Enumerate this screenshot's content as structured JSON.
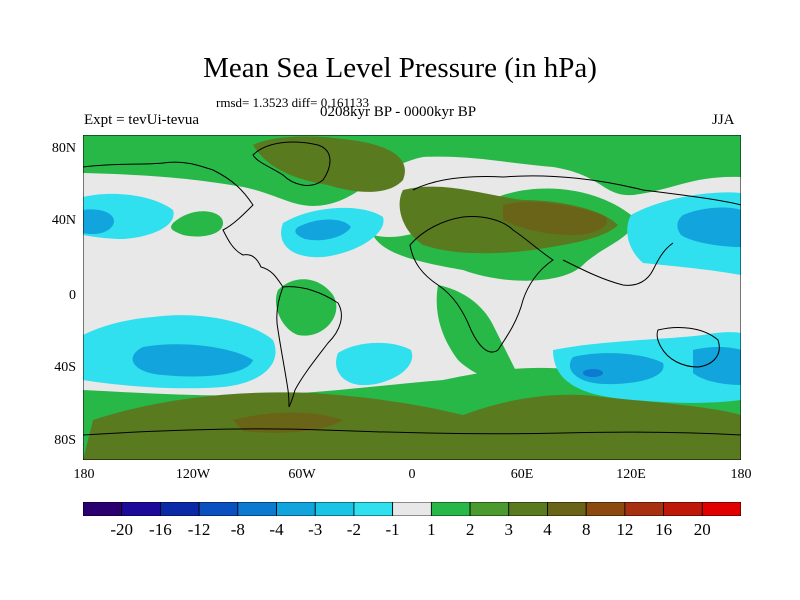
{
  "title": "Mean Sea Level Pressure (in hPa)",
  "stats": "rmsd= 1.3523 diff= 0.161133",
  "experiment": "Expt = tevUi-tevua",
  "period": "0208kyr BP - 0000kyr BP",
  "season": "JJA",
  "y_labels": [
    "80N",
    "40N",
    "0",
    "40S",
    "80S"
  ],
  "x_labels": [
    "180",
    "120W",
    "60W",
    "0",
    "60E",
    "120E",
    "180"
  ],
  "colorbar": {
    "labels": [
      "-20",
      "-16",
      "-12",
      "-8",
      "-4",
      "-3",
      "-2",
      "-1",
      "1",
      "2",
      "3",
      "4",
      "8",
      "12",
      "16",
      "20"
    ],
    "colors": [
      "#2a0070",
      "#1e0a9a",
      "#0a2aa8",
      "#0a50c0",
      "#0c7ad0",
      "#12a4dc",
      "#1ac4e4",
      "#30e0ee",
      "#e8e8e8",
      "#28b848",
      "#4a9a30",
      "#5a7a20",
      "#6a6418",
      "#8c4a10",
      "#a83010",
      "#c01808",
      "#e00000"
    ]
  }
}
